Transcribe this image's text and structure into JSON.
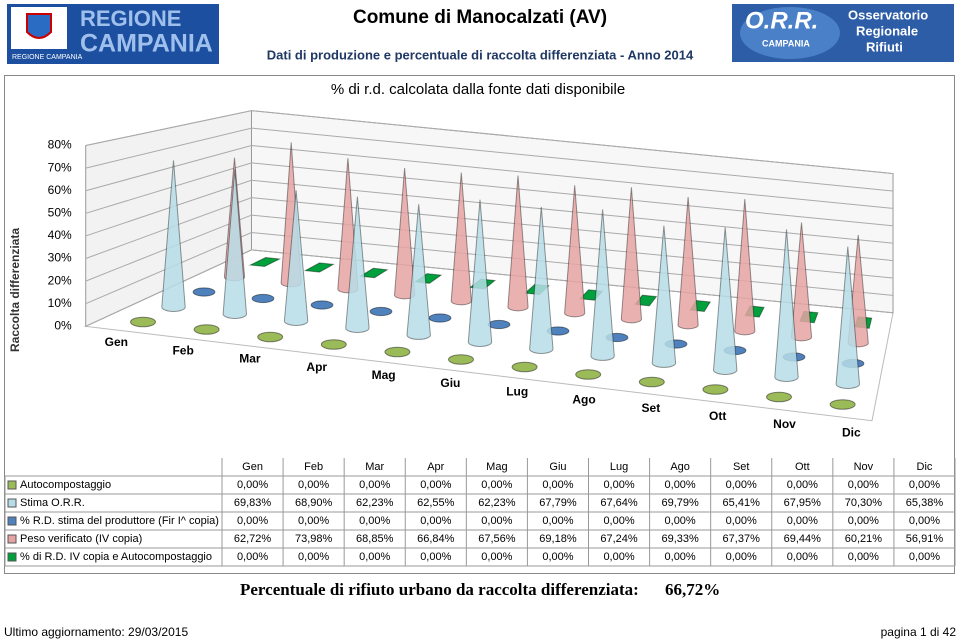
{
  "header": {
    "title": "Comune di Manocalzati (AV)",
    "subtitle": "Dati di produzione e percentuale di raccolta differenziata - Anno 2014",
    "left_logo": {
      "line1": "REGIONE",
      "line2": "CAMPANIA",
      "caption": "REGIONE CAMPANIA"
    },
    "right_logo": {
      "acronym": "O.R.R.",
      "region": "CAMPANIA",
      "line1": "Osservatorio",
      "line2": "Regionale",
      "line3": "Rifiuti"
    }
  },
  "chart_data": {
    "type": "cone",
    "title": "% di r.d. calcolata dalla fonte dati disponibile",
    "y_label": "Raccolta differenziata",
    "categories": [
      "Gen",
      "Feb",
      "Mar",
      "Apr",
      "Mag",
      "Giu",
      "Lug",
      "Ago",
      "Set",
      "Ott",
      "Nov",
      "Dic"
    ],
    "ylim": [
      0,
      80
    ],
    "yticks": [
      {
        "value": 0,
        "label": "0%"
      },
      {
        "value": 10,
        "label": "10%"
      },
      {
        "value": 20,
        "label": "20%"
      },
      {
        "value": 30,
        "label": "30%"
      },
      {
        "value": 40,
        "label": "40%"
      },
      {
        "value": 50,
        "label": "50%"
      },
      {
        "value": 60,
        "label": "60%"
      },
      {
        "value": 70,
        "label": "70%"
      },
      {
        "value": 80,
        "label": "80%"
      }
    ],
    "grid": true,
    "series": [
      {
        "name": "Autocompostaggio",
        "color": "#9bbb59",
        "shape": "cone",
        "values": [
          0,
          0,
          0,
          0,
          0,
          0,
          0,
          0,
          0,
          0,
          0,
          0
        ],
        "value_labels": [
          "0,00%",
          "0,00%",
          "0,00%",
          "0,00%",
          "0,00%",
          "0,00%",
          "0,00%",
          "0,00%",
          "0,00%",
          "0,00%",
          "0,00%",
          "0,00%"
        ]
      },
      {
        "name": "Stima O.R.R.",
        "color": "#b7dde8",
        "shape": "cone",
        "values": [
          69.83,
          68.9,
          62.23,
          62.55,
          62.23,
          67.79,
          67.64,
          69.79,
          65.41,
          67.95,
          70.3,
          65.38
        ],
        "value_labels": [
          "69,83%",
          "68,90%",
          "62,23%",
          "62,55%",
          "62,23%",
          "67,79%",
          "67,64%",
          "69,79%",
          "65,41%",
          "67,95%",
          "70,30%",
          "65,38%"
        ]
      },
      {
        "name": "% R.D. stima del produttore (Fir I^ copia)",
        "color": "#4f81bd",
        "shape": "cone",
        "values": [
          0,
          0,
          0,
          0,
          0,
          0,
          0,
          0,
          0,
          0,
          0,
          0
        ],
        "value_labels": [
          "0,00%",
          "0,00%",
          "0,00%",
          "0,00%",
          "0,00%",
          "0,00%",
          "0,00%",
          "0,00%",
          "0,00%",
          "0,00%",
          "0,00%",
          "0,00%"
        ]
      },
      {
        "name": "Peso verificato (IV copia)",
        "color": "#e6a3a3",
        "shape": "cone",
        "values": [
          62.72,
          73.98,
          68.85,
          66.84,
          67.56,
          69.18,
          67.24,
          69.33,
          67.37,
          69.44,
          60.21,
          56.91
        ],
        "value_labels": [
          "62,72%",
          "73,98%",
          "68,85%",
          "66,84%",
          "67,56%",
          "69,18%",
          "67,24%",
          "69,33%",
          "67,37%",
          "69,44%",
          "60,21%",
          "56,91%"
        ]
      },
      {
        "name": "% di R.D. IV copia e Autocompostaggio",
        "color": "#00a03c",
        "shape": "pyramid",
        "values": [
          0,
          0,
          0,
          0,
          0,
          0,
          0,
          0,
          0,
          0,
          0,
          0
        ],
        "value_labels": [
          "0,00%",
          "0,00%",
          "0,00%",
          "0,00%",
          "0,00%",
          "0,00%",
          "0,00%",
          "0,00%",
          "0,00%",
          "0,00%",
          "0,00%",
          "0,00%"
        ]
      }
    ]
  },
  "footer": {
    "summary_label": "Percentuale di rifiuto urbano da raccolta differenziata:",
    "summary_value": "66,72%",
    "updated": "Ultimo aggiornamento: 29/03/2015",
    "page": "pagina 1 di 42"
  }
}
